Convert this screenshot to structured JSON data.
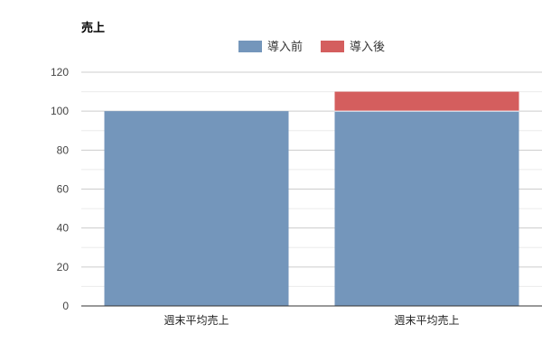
{
  "chart_data": {
    "type": "bar",
    "stacked": true,
    "title": "売上",
    "categories": [
      "週末平均売上",
      "週末平均売上"
    ],
    "series": [
      {
        "name": "導入前",
        "color": "#7496bb",
        "values": [
          100,
          100
        ]
      },
      {
        "name": "導入後",
        "color": "#d45e5e",
        "values": [
          0,
          10
        ]
      }
    ],
    "xlabel": "",
    "ylabel": "",
    "ylim": [
      0,
      120
    ],
    "yticks": [
      0,
      20,
      40,
      60,
      80,
      100,
      120
    ],
    "grid": true,
    "legend": "top-center"
  }
}
